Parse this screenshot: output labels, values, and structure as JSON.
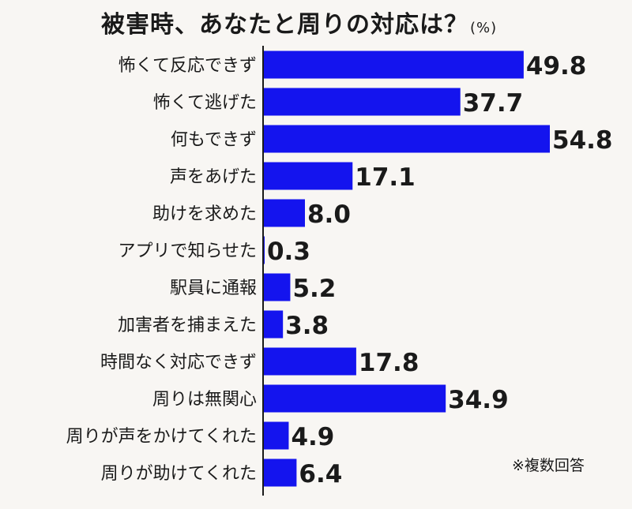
{
  "chart_data": {
    "type": "bar",
    "orientation": "horizontal",
    "title": "被害時、あなたと周りの対応は？",
    "unit": "(%)",
    "note": "※複数回答",
    "bar_color": "#1414ee",
    "axis_color": "#1a1a1a",
    "xlim": [
      0,
      54.8
    ],
    "grid": false,
    "categories": [
      "怖くて反応できず",
      "怖くて逃げた",
      "何もできず",
      "声をあげた",
      "助けを求めた",
      "アプリで知らせた",
      "駅員に通報",
      "加害者を捕まえた",
      "時間なく対応できず",
      "周りは無関心",
      "周りが声をかけてくれた",
      "周りが助けてくれた"
    ],
    "values": [
      49.8,
      37.7,
      54.8,
      17.1,
      8.0,
      0.3,
      5.2,
      3.8,
      17.8,
      34.9,
      4.9,
      6.4
    ],
    "value_labels": [
      "49.8",
      "37.7",
      "54.8",
      "17.1",
      "8.0",
      "0.3",
      "5.2",
      "3.8",
      "17.8",
      "34.9",
      "4.9",
      "6.4"
    ]
  }
}
